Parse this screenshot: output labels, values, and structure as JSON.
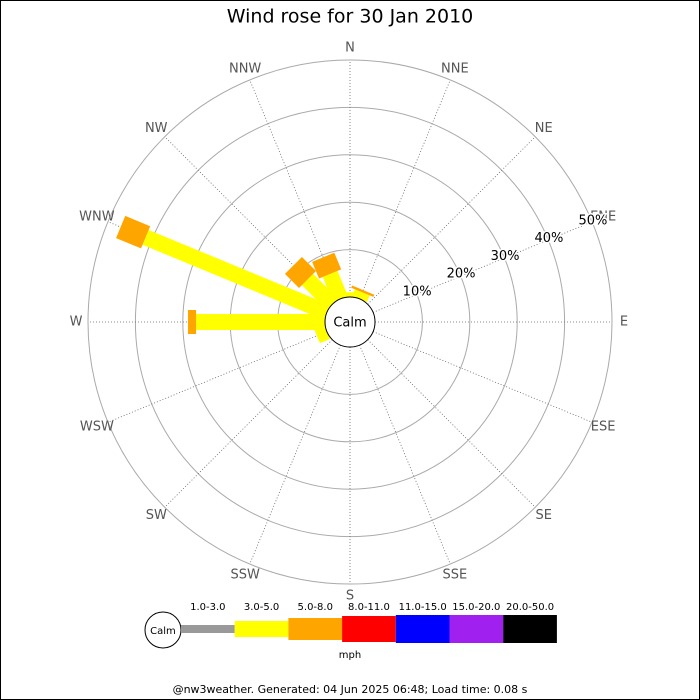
{
  "chart_data": {
    "type": "wind_rose",
    "title": "Wind rose for 30 Jan 2010",
    "categories": [
      "N",
      "NNE",
      "NE",
      "ENE",
      "E",
      "ESE",
      "SE",
      "SSE",
      "S",
      "SSW",
      "SW",
      "WSW",
      "W",
      "WNW",
      "NW",
      "NNW"
    ],
    "calm_label": "Calm",
    "unit": "mph",
    "rlim": [
      0,
      50
    ],
    "rticks": [
      {
        "value": 10,
        "label": "10%"
      },
      {
        "value": 20,
        "label": "20%"
      },
      {
        "value": 30,
        "label": "30%"
      },
      {
        "value": 40,
        "label": "40%"
      },
      {
        "value": 50,
        "label": "50%"
      }
    ],
    "series": [
      {
        "name": "1.0-3.0",
        "color": "#999999",
        "values": [
          0,
          0,
          0,
          0,
          0,
          0,
          0,
          0,
          0,
          0,
          0,
          0,
          0,
          0,
          0,
          0
        ]
      },
      {
        "name": "3.0-5.0",
        "color": "#ffff00",
        "values": [
          1.0,
          1.5,
          0,
          0,
          0,
          0,
          0,
          0,
          0,
          0,
          0,
          2.3,
          27.2,
          41.4,
          7.4,
          5.7
        ]
      },
      {
        "name": "5.0-8.0",
        "color": "#ffa500",
        "values": [
          0,
          0.5,
          0,
          0,
          0,
          0,
          0,
          0,
          0,
          0,
          0,
          0,
          1.7,
          5.7,
          4.2,
          3.8
        ]
      },
      {
        "name": "8.0-11.0",
        "color": "#ff0000",
        "values": [
          0,
          0,
          0,
          0,
          0,
          0,
          0,
          0,
          0,
          0,
          0,
          0,
          0,
          0,
          0,
          0
        ]
      },
      {
        "name": "11.0-15.0",
        "color": "#0000ff",
        "values": [
          0,
          0,
          0,
          0,
          0,
          0,
          0,
          0,
          0,
          0,
          0,
          0,
          0,
          0,
          0,
          0
        ]
      },
      {
        "name": "15.0-20.0",
        "color": "#a020f0",
        "values": [
          0,
          0,
          0,
          0,
          0,
          0,
          0,
          0,
          0,
          0,
          0,
          0,
          0,
          0,
          0,
          0
        ]
      },
      {
        "name": "20.0-50.0",
        "color": "#000000",
        "values": [
          0,
          0,
          0,
          0,
          0,
          0,
          0,
          0,
          0,
          0,
          0,
          0,
          0,
          0,
          0,
          0
        ]
      }
    ],
    "footer": "@nw3weather. Generated: 04 Jun 2025 06:48; Load time: 0.08 s"
  }
}
